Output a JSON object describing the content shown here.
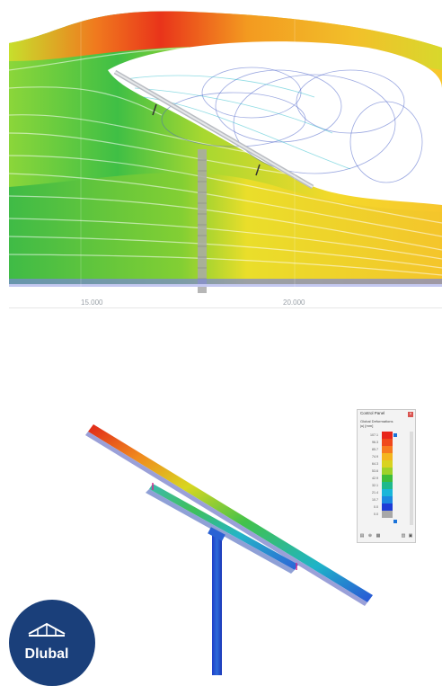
{
  "flow_view": {
    "x_axis_ticks": [
      "15.000",
      "20.000"
    ]
  },
  "model_view": {
    "control_panel": {
      "title": "Control Panel",
      "heading": "Global Deformations",
      "unit": "|u| [mm]",
      "close_icon": "close-icon",
      "legend": [
        {
          "value": "107.1",
          "color": "#e8261a"
        },
        {
          "value": "96.3",
          "color": "#f0491c"
        },
        {
          "value": "85.7",
          "color": "#f77b1f"
        },
        {
          "value": "74.9",
          "color": "#f4b51e"
        },
        {
          "value": "64.3",
          "color": "#d9d320"
        },
        {
          "value": "53.6",
          "color": "#9dd22a"
        },
        {
          "value": "42.9",
          "color": "#3dbd3b"
        },
        {
          "value": "32.1",
          "color": "#1fb98c"
        },
        {
          "value": "21.4",
          "color": "#19b6d9"
        },
        {
          "value": "10.7",
          "color": "#1b88e0"
        },
        {
          "value": "0.0",
          "color": "#1d3cd6"
        },
        {
          "value": "0.0",
          "color": "#a8a8a8"
        }
      ],
      "footer_icons": [
        "legend-icon",
        "zoom-icon",
        "grid-icon"
      ]
    }
  },
  "logo": {
    "text": "Dlubal"
  }
}
